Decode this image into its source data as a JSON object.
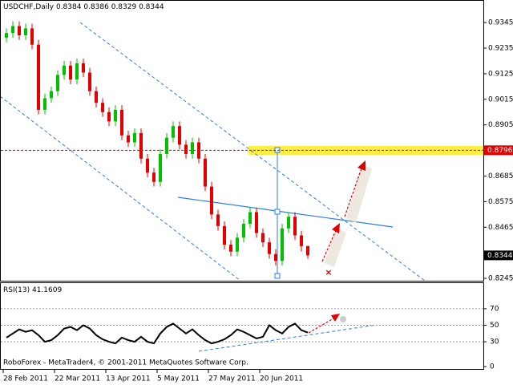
{
  "chart_data": [
    {
      "type": "candlestick",
      "title": "USDCHF,Daily",
      "categories": [
        "28 Feb 2011",
        null,
        null,
        null,
        null,
        null,
        null,
        null,
        "22 Mar 2011",
        null,
        null,
        null,
        null,
        null,
        null,
        null,
        "13 Apr 2011",
        null,
        null,
        null,
        null,
        null,
        null,
        null,
        "5 May 2011",
        null,
        null,
        null,
        null,
        null,
        null,
        null,
        "27 May 2011",
        null,
        null,
        null,
        null,
        null,
        null,
        null,
        "20 Jun 2011",
        null,
        null,
        null,
        null,
        null,
        null,
        null
      ],
      "open": [
        0.928,
        0.93,
        0.933,
        0.929,
        0.932,
        0.925,
        0.897,
        0.902,
        0.905,
        0.912,
        0.916,
        0.91,
        0.917,
        0.913,
        0.905,
        0.9,
        0.896,
        0.892,
        0.897,
        0.886,
        0.883,
        0.887,
        0.876,
        0.87,
        0.866,
        0.878,
        0.885,
        0.89,
        0.882,
        0.878,
        0.883,
        0.876,
        0.864,
        0.852,
        0.847,
        0.839,
        0.836,
        0.842,
        0.848,
        0.853,
        0.844,
        0.84,
        0.835,
        0.832,
        0.846,
        0.851,
        0.843,
        0.8384
      ],
      "high": [
        0.932,
        0.935,
        0.935,
        0.934,
        0.934,
        0.927,
        0.904,
        0.907,
        0.914,
        0.918,
        0.918,
        0.919,
        0.919,
        0.915,
        0.907,
        0.902,
        0.898,
        0.899,
        0.899,
        0.888,
        0.889,
        0.889,
        0.878,
        0.872,
        0.88,
        0.887,
        0.892,
        0.892,
        0.884,
        0.885,
        0.885,
        0.878,
        0.866,
        0.854,
        0.849,
        0.841,
        0.844,
        0.85,
        0.855,
        0.855,
        0.846,
        0.842,
        0.837,
        0.848,
        0.853,
        0.853,
        0.845,
        0.8386
      ],
      "low": [
        0.926,
        0.928,
        0.927,
        0.927,
        0.923,
        0.895,
        0.895,
        0.9,
        0.903,
        0.91,
        0.908,
        0.908,
        0.911,
        0.903,
        0.898,
        0.894,
        0.89,
        0.89,
        0.884,
        0.881,
        0.881,
        0.874,
        0.868,
        0.864,
        0.864,
        0.876,
        0.883,
        0.88,
        0.876,
        0.876,
        0.874,
        0.862,
        0.85,
        0.845,
        0.837,
        0.834,
        0.834,
        0.84,
        0.846,
        0.842,
        0.838,
        0.833,
        0.83,
        0.83,
        0.844,
        0.841,
        0.836,
        0.8329
      ],
      "close": [
        0.93,
        0.933,
        0.929,
        0.932,
        0.925,
        0.897,
        0.902,
        0.905,
        0.912,
        0.916,
        0.91,
        0.917,
        0.913,
        0.905,
        0.9,
        0.896,
        0.892,
        0.897,
        0.886,
        0.883,
        0.887,
        0.876,
        0.87,
        0.866,
        0.878,
        0.885,
        0.89,
        0.882,
        0.878,
        0.883,
        0.876,
        0.864,
        0.852,
        0.847,
        0.839,
        0.836,
        0.842,
        0.848,
        0.853,
        0.844,
        0.84,
        0.835,
        0.832,
        0.846,
        0.851,
        0.843,
        0.8384,
        0.8344
      ],
      "up_color": "#00c000",
      "down_color": "#e00000",
      "ylim": [
        0.8235,
        0.9442
      ],
      "yticks": [
        0.9345,
        0.9235,
        0.9125,
        0.9015,
        0.8905,
        0.8685,
        0.8575,
        0.8465,
        0.8245
      ],
      "level": 0.8796,
      "level_color": "#e00000"
    },
    {
      "type": "line",
      "title": "RSI(13)",
      "values": [
        35,
        40,
        45,
        42,
        44,
        38,
        30,
        32,
        38,
        46,
        48,
        44,
        50,
        46,
        38,
        33,
        30,
        28,
        35,
        32,
        30,
        36,
        30,
        28,
        40,
        48,
        52,
        46,
        40,
        45,
        38,
        32,
        28,
        30,
        33,
        38,
        45,
        42,
        38,
        34,
        36,
        50,
        44,
        40,
        48,
        52,
        44,
        41.1609
      ],
      "color": "#000000",
      "ylim": [
        0,
        100
      ],
      "yticks": [
        0,
        30,
        50,
        70
      ]
    }
  ],
  "footer": "RoboForex - MetaTrader4, © 2001-2011 MetaQuotes Software Corp."
}
